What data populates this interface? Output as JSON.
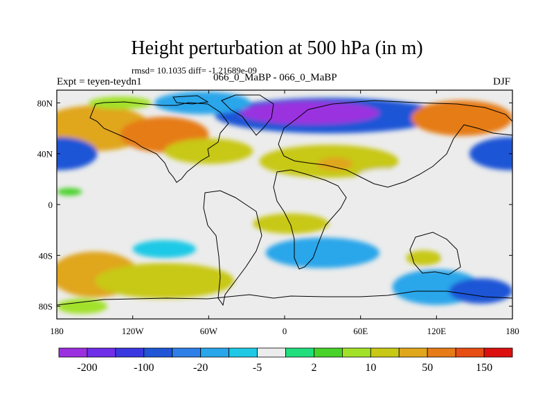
{
  "chart_data": {
    "type": "contour-map",
    "title": "Height perturbation at 500 hPa (in m)",
    "stats_text": "rmsd= 10.1035 diff= -1.21689e-09",
    "left_label": "Expt = teyen-teydn1",
    "center_label": "066_0_MaBP - 066_0_MaBP",
    "right_label": "DJF",
    "x_ticks": [
      "180",
      "120W",
      "60W",
      "0",
      "60E",
      "120E",
      "180"
    ],
    "y_ticks": [
      "80N",
      "40N",
      "0",
      "40S",
      "80S"
    ],
    "xlim": [
      -180,
      180
    ],
    "ylim": [
      -90,
      90
    ],
    "colorbar": {
      "colors": [
        "#9b30e0",
        "#6f2ee8",
        "#3a37e0",
        "#1f55d6",
        "#2f7fe8",
        "#2aa6ea",
        "#1fc9e6",
        "#ececec",
        "#22de7d",
        "#48d22a",
        "#a2e12a",
        "#c8c817",
        "#e0a61c",
        "#e67b18",
        "#e64e14",
        "#dd1010"
      ],
      "labels": [
        "-200",
        "-100",
        "-20",
        "-5",
        "2",
        "10",
        "50",
        "150"
      ]
    },
    "anomalies": [
      {
        "lon": -150,
        "lat": 60,
        "rx": 45,
        "ry": 18,
        "value": 40
      },
      {
        "lon": -95,
        "lat": 55,
        "rx": 35,
        "ry": 14,
        "value": 60
      },
      {
        "lon": -60,
        "lat": 42,
        "rx": 35,
        "ry": 10,
        "value": 15
      },
      {
        "lon": 35,
        "lat": 34,
        "rx": 55,
        "ry": 13,
        "value": 15
      },
      {
        "lon": 40,
        "lat": 32,
        "rx": 14,
        "ry": 5,
        "value": 40
      },
      {
        "lon": 35,
        "lat": 70,
        "rx": 90,
        "ry": 14,
        "value": -80
      },
      {
        "lon": 20,
        "lat": 72,
        "rx": 55,
        "ry": 9,
        "value": -300
      },
      {
        "lon": -65,
        "lat": 80,
        "rx": 38,
        "ry": 9,
        "value": -20
      },
      {
        "lon": -130,
        "lat": 80,
        "rx": 25,
        "ry": 5,
        "value": 8
      },
      {
        "lon": 140,
        "lat": 68,
        "rx": 40,
        "ry": 14,
        "value": 55
      },
      {
        "lon": 178,
        "lat": 40,
        "rx": 32,
        "ry": 13,
        "value": -80
      },
      {
        "lon": -178,
        "lat": 40,
        "rx": 30,
        "ry": 13,
        "value": -80
      },
      {
        "lon": 80,
        "lat": 22,
        "rx": 22,
        "ry": 6,
        "value": -5
      },
      {
        "lon": -170,
        "lat": 10,
        "rx": 10,
        "ry": 3,
        "value": 4
      },
      {
        "lon": 5,
        "lat": -15,
        "rx": 30,
        "ry": 8,
        "value": 10
      },
      {
        "lon": 115,
        "lat": -15,
        "rx": 55,
        "ry": 8,
        "value": -5
      },
      {
        "lon": -170,
        "lat": -15,
        "rx": 25,
        "ry": 6,
        "value": -5
      },
      {
        "lon": -95,
        "lat": -35,
        "rx": 25,
        "ry": 7,
        "value": -6
      },
      {
        "lon": 30,
        "lat": -38,
        "rx": 45,
        "ry": 12,
        "value": -20
      },
      {
        "lon": 110,
        "lat": -42,
        "rx": 14,
        "ry": 6,
        "value": 15
      },
      {
        "lon": 150,
        "lat": -40,
        "rx": 25,
        "ry": 8,
        "value": -5
      },
      {
        "lon": 120,
        "lat": -65,
        "rx": 35,
        "ry": 14,
        "value": -15
      },
      {
        "lon": 155,
        "lat": -68,
        "rx": 25,
        "ry": 10,
        "value": -60
      },
      {
        "lon": -150,
        "lat": -55,
        "rx": 35,
        "ry": 18,
        "value": 30
      },
      {
        "lon": -95,
        "lat": -60,
        "rx": 55,
        "ry": 14,
        "value": 15
      },
      {
        "lon": -160,
        "lat": -80,
        "rx": 20,
        "ry": 6,
        "value": 8
      },
      {
        "lon": -3,
        "lat": -73,
        "rx": 18,
        "ry": 5,
        "value": -5
      }
    ]
  }
}
